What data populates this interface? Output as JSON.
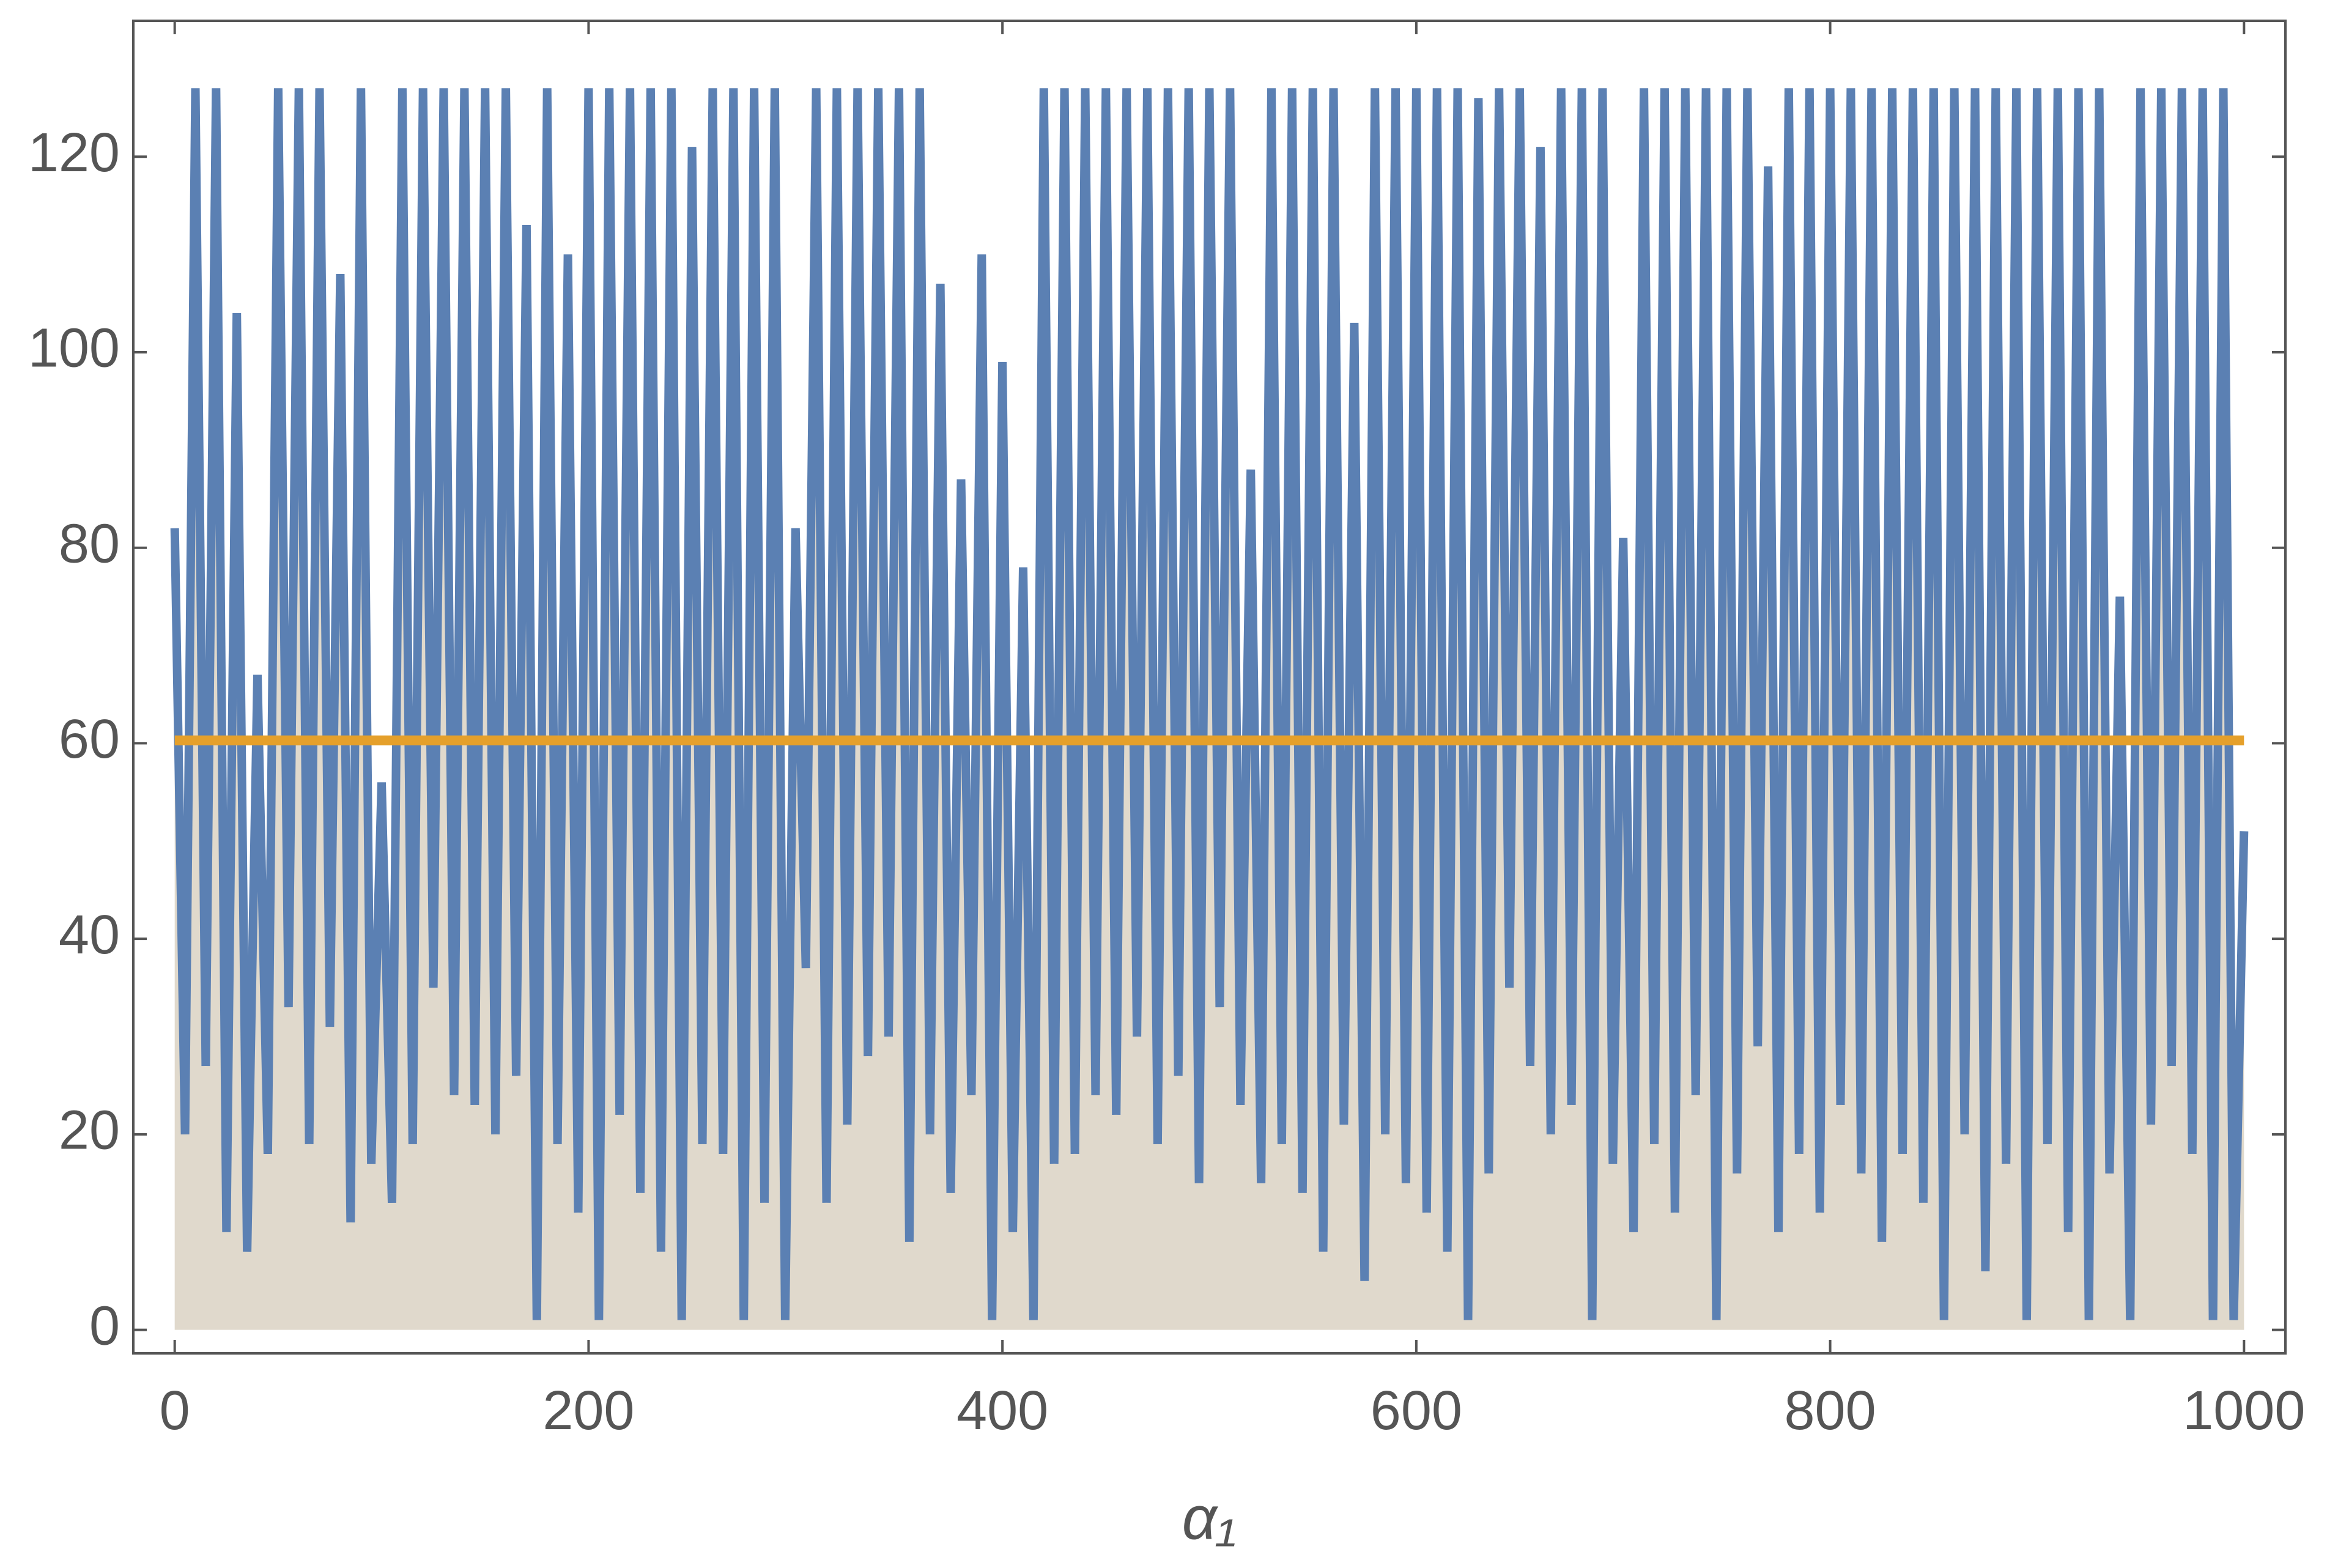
{
  "chart_data": {
    "type": "line",
    "xlabel": "α₁",
    "xlim": [
      -20,
      1020
    ],
    "ylim": [
      -2.4,
      133.9
    ],
    "xticks": [
      0,
      200,
      400,
      600,
      800,
      1000
    ],
    "yticks": [
      0,
      20,
      40,
      60,
      80,
      100,
      120
    ],
    "series": [
      {
        "color": "#5b80b3",
        "fill": "#e0d9cc",
        "x": [
          0,
          5,
          10,
          15,
          20,
          25,
          30,
          35,
          40,
          45,
          50,
          55,
          60,
          65,
          70,
          75,
          80,
          85,
          90,
          95,
          100,
          105,
          110,
          115,
          120,
          125,
          130,
          135,
          140,
          145,
          150,
          155,
          160,
          165,
          170,
          175,
          180,
          185,
          190,
          195,
          200,
          205,
          210,
          215,
          220,
          225,
          230,
          235,
          240,
          245,
          250,
          255,
          260,
          265,
          270,
          275,
          280,
          285,
          290,
          295,
          300,
          305,
          310,
          315,
          320,
          325,
          330,
          335,
          340,
          345,
          350,
          355,
          360,
          365,
          370,
          375,
          380,
          385,
          390,
          395,
          400,
          405,
          410,
          415,
          420,
          425,
          430,
          435,
          440,
          445,
          450,
          455,
          460,
          465,
          470,
          475,
          480,
          485,
          490,
          495,
          500,
          505,
          510,
          515,
          520,
          525,
          530,
          535,
          540,
          545,
          550,
          555,
          560,
          565,
          570,
          575,
          580,
          585,
          590,
          595,
          600,
          605,
          610,
          615,
          620,
          625,
          630,
          635,
          640,
          645,
          650,
          655,
          660,
          665,
          670,
          675,
          680,
          685,
          690,
          695,
          700,
          705,
          710,
          715,
          720,
          725,
          730,
          735,
          740,
          745,
          750,
          755,
          760,
          765,
          770,
          775,
          780,
          785,
          790,
          795,
          800,
          805,
          810,
          815,
          820,
          825,
          830,
          835,
          840,
          845,
          850,
          855,
          860,
          865,
          870,
          875,
          880,
          885,
          890,
          895,
          900,
          905,
          910,
          915,
          920,
          925,
          930,
          935,
          940,
          945,
          950,
          955,
          960,
          965,
          970,
          975,
          980,
          985,
          990,
          995,
          1000
        ],
        "values": [
          82,
          20,
          127,
          27,
          127,
          10,
          104,
          8,
          67,
          18,
          127,
          33,
          127,
          19,
          127,
          31,
          108,
          11,
          127,
          17,
          56,
          13,
          127,
          19,
          127,
          35,
          127,
          24,
          127,
          23,
          127,
          20,
          127,
          26,
          113,
          1,
          127,
          19,
          110,
          12,
          127,
          1,
          127,
          22,
          127,
          14,
          127,
          8,
          127,
          1,
          121,
          19,
          127,
          18,
          127,
          1,
          127,
          13,
          127,
          1,
          82,
          37,
          127,
          13,
          127,
          21,
          127,
          28,
          127,
          30,
          127,
          9,
          127,
          20,
          107,
          14,
          87,
          24,
          110,
          1,
          99,
          10,
          78,
          1,
          127,
          17,
          127,
          18,
          127,
          24,
          127,
          22,
          127,
          30,
          127,
          19,
          127,
          26,
          127,
          15,
          127,
          33,
          127,
          23,
          88,
          15,
          127,
          19,
          127,
          14,
          127,
          8,
          127,
          21,
          103,
          5,
          127,
          20,
          127,
          15,
          127,
          12,
          127,
          8,
          127,
          1,
          126,
          16,
          127,
          35,
          127,
          27,
          121,
          20,
          127,
          23,
          127,
          1,
          127,
          17,
          81,
          10,
          127,
          19,
          127,
          12,
          127,
          24,
          127,
          1,
          127,
          16,
          127,
          29,
          119,
          10,
          127,
          18,
          127,
          12,
          127,
          23,
          127,
          16,
          127,
          9,
          127,
          18,
          127,
          13,
          127,
          1,
          127,
          20,
          127,
          6,
          127,
          17,
          127,
          1,
          127,
          19,
          127,
          10,
          127,
          1,
          127,
          16,
          75,
          1,
          127,
          21,
          127,
          27,
          127,
          18,
          127,
          1,
          127,
          1,
          51
        ]
      },
      {
        "color": "#e5a02b",
        "x": [
          0,
          1000
        ],
        "values": [
          60.3,
          60.3
        ]
      }
    ]
  }
}
